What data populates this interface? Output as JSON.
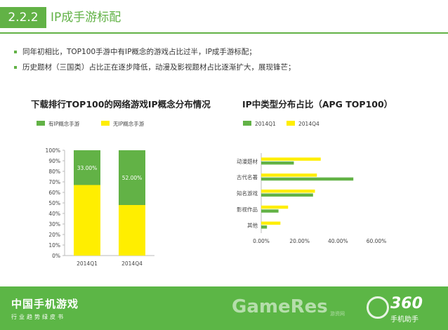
{
  "header": {
    "section_number": "2.2.2",
    "section_title": "IP成手游标配"
  },
  "bullets": [
    "同年初相比，TOP100手游中有IP概念的游戏占比过半，IP成手游标配；",
    "历史题材（三国类）占比正在逐步降低，动漫及影视题材占比逐渐扩大，展现锋芒；"
  ],
  "colors": {
    "green": "#62b246",
    "yellow": "#ffee00",
    "footer": "#5cb646"
  },
  "chart_data": [
    {
      "type": "bar",
      "stacked": true,
      "percent": true,
      "title": "下载排行TOP100的网络游戏IP概念分布情况",
      "categories": [
        "2014Q1",
        "2014Q4"
      ],
      "series": [
        {
          "name": "有IP概念手游",
          "color": "#62b246",
          "values": [
            33,
            52
          ],
          "labels": [
            "33.00%",
            "52.00%"
          ]
        },
        {
          "name": "无IP概念手游",
          "color": "#ffee00",
          "values": [
            67,
            48
          ]
        }
      ],
      "yticks": [
        "0%",
        "10%",
        "20%",
        "30%",
        "40%",
        "50%",
        "60%",
        "70%",
        "80%",
        "90%",
        "100%"
      ],
      "ylim": [
        0,
        100
      ],
      "legend": "top"
    },
    {
      "type": "bar",
      "orientation": "horizontal",
      "title": "IP中类型分布占比（APG TOP100）",
      "categories": [
        "动漫题材",
        "古代名著",
        "知名游戏",
        "影视作品",
        "其他"
      ],
      "series": [
        {
          "name": "2014Q1",
          "color": "#62b246",
          "values": [
            17,
            48,
            27,
            9,
            3
          ]
        },
        {
          "name": "2014Q4",
          "color": "#ffee00",
          "values": [
            31,
            29,
            28,
            14,
            10
          ]
        }
      ],
      "xticks": [
        "0.00%",
        "20.00%",
        "40.00%",
        "60.00%"
      ],
      "xlim": [
        0,
        60
      ],
      "legend": "top"
    }
  ],
  "footer": {
    "title": "中国手机游戏",
    "subtitle": "行业趋势绿皮书",
    "watermark": "GameRes",
    "watermark_sub": "游资网",
    "logo": "360",
    "logo_sub": "手机助手"
  }
}
